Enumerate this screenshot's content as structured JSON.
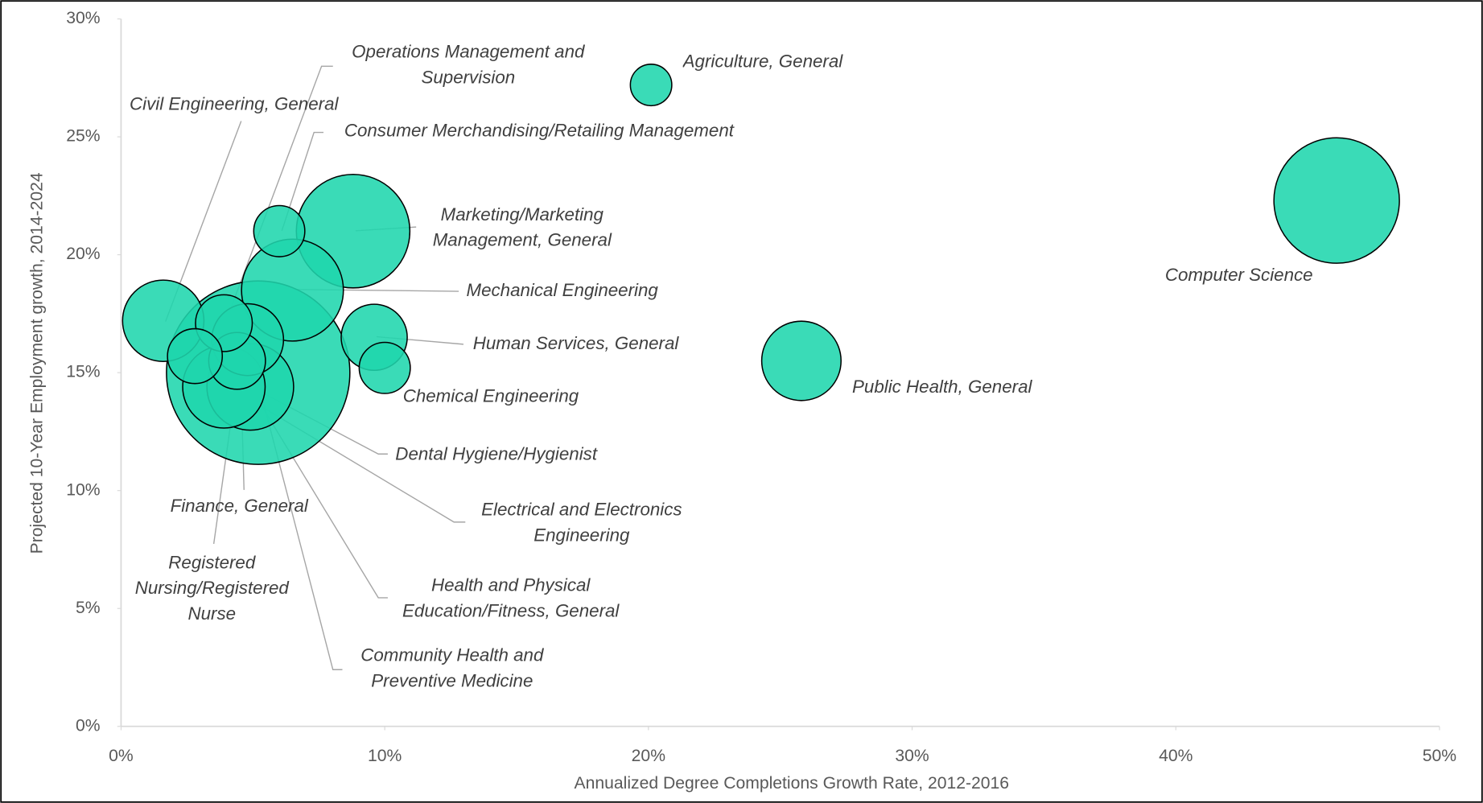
{
  "chart_data": {
    "type": "bubble",
    "x_label": "Annualized Degree Completions Growth Rate, 2012-2016",
    "y_label": "Projected 10-Year Employment growth, 2014-2024",
    "color": "#1fd6ad",
    "xlim": [
      0,
      50
    ],
    "ylim": [
      0,
      30
    ],
    "xticks": [
      {
        "value": 0,
        "label": "0%"
      },
      {
        "value": 10,
        "label": "10%"
      },
      {
        "value": 20,
        "label": "20%"
      },
      {
        "value": 30,
        "label": "30%"
      },
      {
        "value": 40,
        "label": "40%"
      },
      {
        "value": 50,
        "label": "50%"
      }
    ],
    "yticks": [
      {
        "value": 0,
        "label": "0%"
      },
      {
        "value": 5,
        "label": "5%"
      },
      {
        "value": 10,
        "label": "10%"
      },
      {
        "value": 15,
        "label": "15%"
      },
      {
        "value": 20,
        "label": "20%"
      },
      {
        "value": 25,
        "label": "25%"
      },
      {
        "value": 30,
        "label": "30%"
      }
    ],
    "points": [
      {
        "name": "Registered Nursing/Registered Nurse",
        "x": 5.2,
        "y": 15.0,
        "size": 94
      },
      {
        "name": "Computer Science",
        "x": 46.1,
        "y": 22.3,
        "size": 44
      },
      {
        "name": "Marketing/Marketing Management, General",
        "x": 8.8,
        "y": 21.0,
        "size": 36
      },
      {
        "name": "Mechanical Engineering",
        "x": 6.5,
        "y": 18.5,
        "size": 29
      },
      {
        "name": "Electrical and Electronics Engineering",
        "x": 4.9,
        "y": 14.4,
        "size": 21
      },
      {
        "name": "Health and Physical Education/Fitness, General",
        "x": 3.9,
        "y": 14.4,
        "size": 19
      },
      {
        "name": "Civil Engineering, General",
        "x": 1.6,
        "y": 17.2,
        "size": 18.5
      },
      {
        "name": "Public Health, General",
        "x": 25.8,
        "y": 15.5,
        "size": 17.6
      },
      {
        "name": "Finance, General",
        "x": 4.8,
        "y": 16.4,
        "size": 14.4
      },
      {
        "name": "Human Services, General",
        "x": 9.6,
        "y": 16.5,
        "size": 12.2
      },
      {
        "name": "Community Health and Preventive Medicine",
        "x": 4.4,
        "y": 15.5,
        "size": 9
      },
      {
        "name": "Operations Management and Supervision",
        "x": 3.9,
        "y": 17.1,
        "size": 9
      },
      {
        "name": "Dental Hygiene/Hygienist",
        "x": 2.8,
        "y": 15.7,
        "size": 8.4
      },
      {
        "name": "Consumer Merchandising/Retailing Management",
        "x": 6.0,
        "y": 21.0,
        "size": 7.3
      },
      {
        "name": "Chemical Engineering",
        "x": 10.0,
        "y": 15.2,
        "size": 7.3
      },
      {
        "name": "Agriculture, General",
        "x": 20.1,
        "y": 27.2,
        "size": 4.8
      }
    ]
  }
}
